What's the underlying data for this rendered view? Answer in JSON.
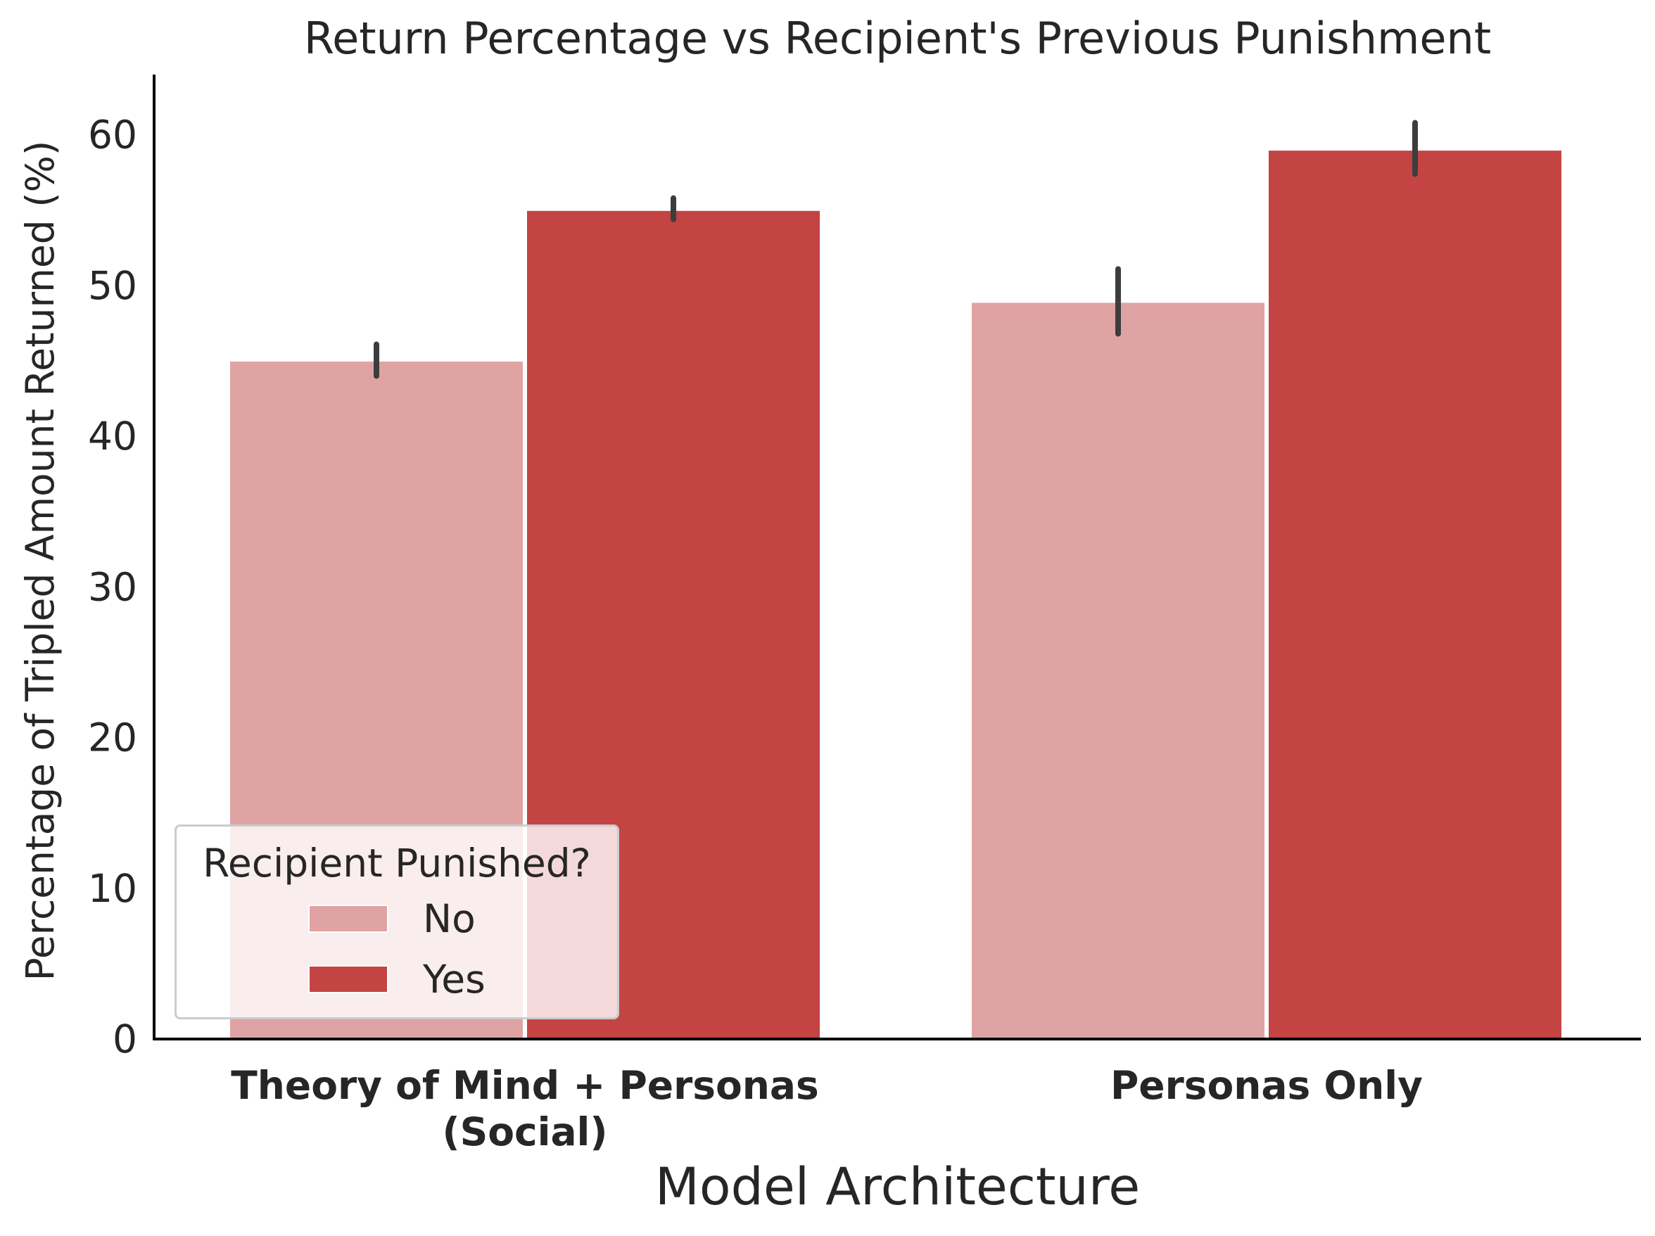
{
  "chart_data": {
    "type": "bar",
    "title": "Return Percentage vs Recipient's Previous Punishment",
    "xlabel": "Model Architecture",
    "ylabel": "Percentage of Tripled Amount Returned (%)",
    "categories": [
      [
        "Theory of Mind + Personas",
        "(Social)"
      ],
      [
        "Personas Only"
      ]
    ],
    "ylim": [
      0,
      64
    ],
    "yticks": [
      0,
      10,
      20,
      30,
      40,
      50,
      60
    ],
    "grid": false,
    "legend": {
      "title": "Recipient Punished?",
      "position": "lower-left"
    },
    "series": [
      {
        "name": "No",
        "color": "#e0a3a3",
        "values": [
          45.0,
          48.9
        ],
        "error_low": [
          44.0,
          46.8
        ],
        "error_high": [
          46.1,
          51.1
        ]
      },
      {
        "name": "Yes",
        "color": "#c44444",
        "values": [
          55.0,
          59.0
        ],
        "error_low": [
          54.4,
          57.4
        ],
        "error_high": [
          55.8,
          60.8
        ]
      }
    ]
  }
}
